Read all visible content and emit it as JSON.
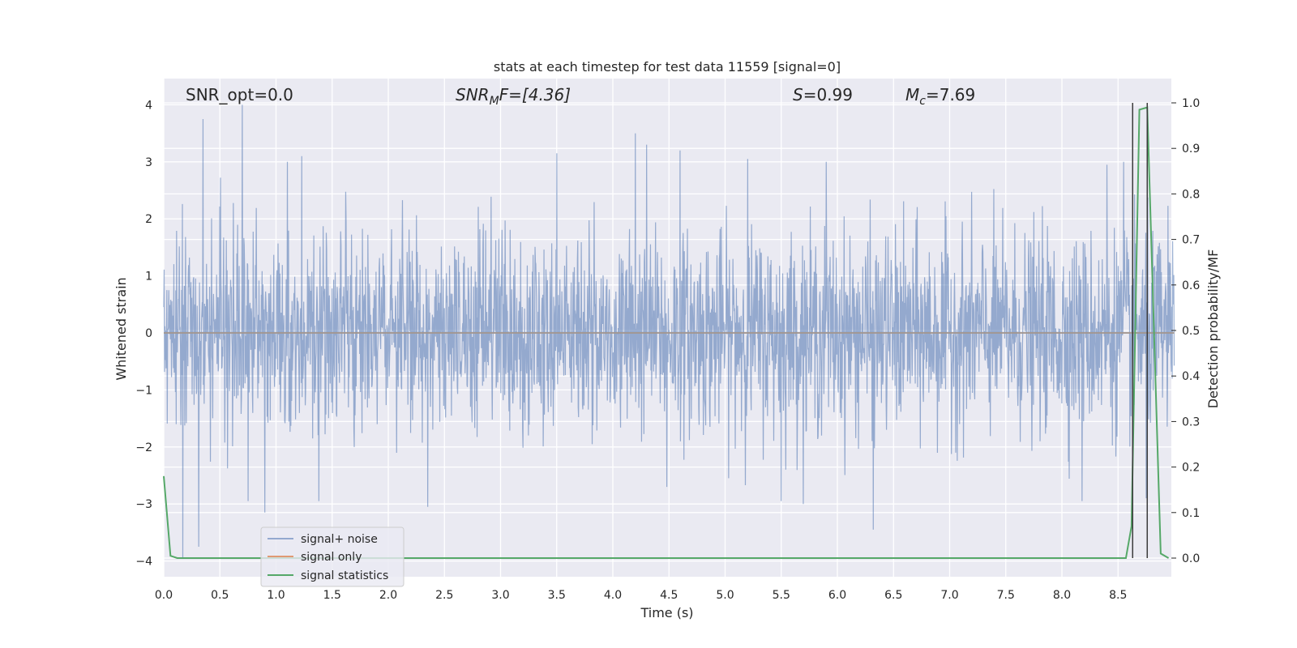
{
  "chart_data": {
    "type": "line",
    "title": "stats at each timestep for test data 11559 [signal=0]",
    "xlabel": "Time (s)",
    "ylabel_left": "Whitened strain",
    "ylabel_right": "Detection probability/MF",
    "xlim": [
      0.0,
      9.0
    ],
    "ylim_left": [
      -4.3,
      4.4
    ],
    "ylim_right": [
      -0.045,
      1.045
    ],
    "grid": true,
    "legend_position": "lower-left",
    "x_ticks": [
      "0.0",
      "0.5",
      "1.0",
      "1.5",
      "2.0",
      "2.5",
      "3.0",
      "3.5",
      "4.0",
      "4.5",
      "5.0",
      "5.5",
      "6.0",
      "6.5",
      "7.0",
      "7.5",
      "8.0",
      "8.5"
    ],
    "y_ticks_left": [
      "−4",
      "−3",
      "−2",
      "−1",
      "0",
      "1",
      "2",
      "3",
      "4"
    ],
    "y_ticks_right": [
      "0.0",
      "0.1",
      "0.2",
      "0.3",
      "0.4",
      "0.5",
      "0.6",
      "0.7",
      "0.8",
      "0.9",
      "1.0"
    ],
    "annotations": {
      "snr_opt": "SNR_opt=0.0",
      "snr_mf_prefix": "SNR",
      "snr_mf_sub": "M",
      "snr_mf_rest": "F=[4.36]",
      "s_var": "S",
      "s_rest": "=0.99",
      "mc_var": "M",
      "mc_sub": "c",
      "mc_rest": "=7.69"
    },
    "series": [
      {
        "name": "signal+ noise",
        "axis": "left",
        "style": "dense-noise",
        "color": "#4c72b0",
        "x_range": [
          0.0,
          9.0
        ],
        "typical_amplitude": 0.85,
        "peaks": [
          {
            "x": 0.7,
            "y": 4.0
          },
          {
            "x": 0.35,
            "y": 3.75
          },
          {
            "x": 1.23,
            "y": 3.1
          },
          {
            "x": 1.1,
            "y": 3.0
          },
          {
            "x": 3.5,
            "y": 3.15
          },
          {
            "x": 4.2,
            "y": 3.5
          },
          {
            "x": 4.3,
            "y": 3.3
          },
          {
            "x": 4.6,
            "y": 3.2
          },
          {
            "x": 5.2,
            "y": 3.05
          },
          {
            "x": 5.9,
            "y": 3.0
          },
          {
            "x": 8.4,
            "y": 2.95
          },
          {
            "x": 8.55,
            "y": 3.0
          },
          {
            "x": 0.17,
            "y": -3.95
          },
          {
            "x": 0.31,
            "y": -3.75
          },
          {
            "x": 0.9,
            "y": -3.15
          },
          {
            "x": 1.38,
            "y": -2.95
          },
          {
            "x": 2.35,
            "y": -3.05
          },
          {
            "x": 5.5,
            "y": -2.95
          },
          {
            "x": 6.32,
            "y": -3.45
          },
          {
            "x": 8.18,
            "y": -2.95
          },
          {
            "x": 8.75,
            "y": -2.9
          },
          {
            "x": 4.48,
            "y": -2.7
          },
          {
            "x": 0.75,
            "y": -2.95
          }
        ]
      },
      {
        "name": "signal only",
        "axis": "left",
        "color": "#dd8452",
        "x": [
          0.0,
          9.0
        ],
        "y": [
          0.0,
          0.0
        ]
      },
      {
        "name": "signal statistics",
        "axis": "right",
        "color": "#55a868",
        "x": [
          0.0,
          0.06,
          0.12,
          0.17,
          0.5,
          1.0,
          2.0,
          3.0,
          4.0,
          5.0,
          6.0,
          7.0,
          8.0,
          8.5,
          8.57,
          8.62,
          8.69,
          8.76,
          8.82,
          8.88,
          8.95
        ],
        "y": [
          0.18,
          0.005,
          0.0,
          0.0,
          0.0,
          0.0,
          0.0,
          0.0,
          0.0,
          0.0,
          0.0,
          0.0,
          0.0,
          0.0,
          0.0,
          0.07,
          0.985,
          0.99,
          0.5,
          0.01,
          0.0
        ]
      }
    ],
    "vertical_lines": [
      {
        "x": 8.63,
        "y_range": [
          0.0,
          1.0
        ],
        "color": "#3c3c3c"
      },
      {
        "x": 8.76,
        "y_range": [
          0.0,
          1.0
        ],
        "color": "#3c3c3c"
      }
    ]
  }
}
